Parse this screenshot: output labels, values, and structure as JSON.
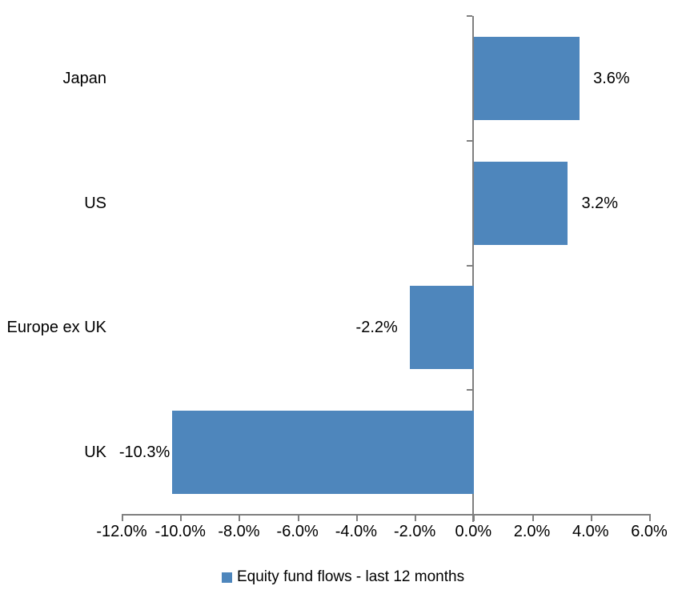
{
  "chart_data": {
    "type": "bar",
    "orientation": "horizontal",
    "categories": [
      "Japan",
      "US",
      "Europe ex UK",
      "UK"
    ],
    "values": [
      3.6,
      3.2,
      -2.2,
      -10.3
    ],
    "data_labels": [
      "3.6%",
      "3.2%",
      "-2.2%",
      "-10.3%"
    ],
    "x_tick_values": [
      -12,
      -10,
      -8,
      -6,
      -4,
      -2,
      0,
      2,
      4,
      6
    ],
    "x_tick_labels": [
      "-12.0%",
      "-10.0%",
      "-8.0%",
      "-6.0%",
      "-4.0%",
      "-2.0%",
      "0.0%",
      "2.0%",
      "4.0%",
      "6.0%"
    ],
    "xlim": [
      -12,
      6
    ],
    "title": "",
    "xlabel": "",
    "ylabel": "",
    "grid": false,
    "legend_position": "bottom",
    "legend": [
      {
        "label": "Equity fund flows - last 12 months",
        "color": "#4e86bc"
      }
    ],
    "bar_color": "#4e86bc",
    "axis_color": "#7f7f7f",
    "text_color": "#000000",
    "background_color": "#ffffff"
  }
}
